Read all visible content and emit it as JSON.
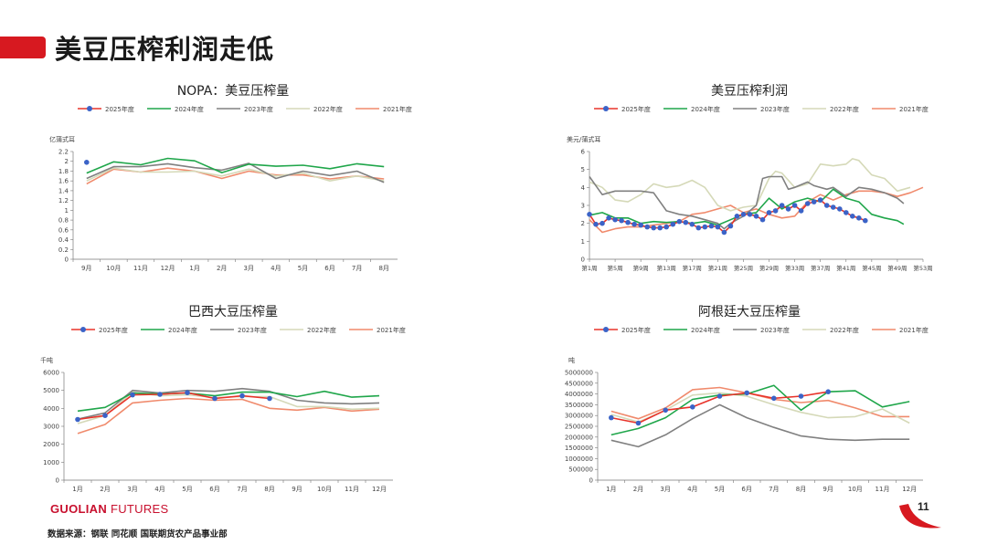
{
  "page": {
    "title": "美豆压榨利润走低",
    "source": "数据来源：钢联  同花顺  国联期货农产品事业部",
    "logo_bold": "GUOLIAN",
    "logo_light": " FUTURES",
    "page_number": "11"
  },
  "colors": {
    "2025年度": "#e8332a",
    "2024年度": "#1fa64a",
    "2023年度": "#808080",
    "2022年度": "#d5d9b8",
    "2021年度": "#f08a6c",
    "marker": "#3b63c7",
    "accent": "#d71920"
  },
  "chart_data": [
    {
      "type": "line",
      "title": "NOPA：美豆压榨量",
      "ylabel": "亿蒲式耳",
      "ylim": [
        0,
        2.2
      ],
      "yticks": [
        0,
        0.2,
        0.4,
        0.6,
        0.8,
        1,
        1.2,
        1.4,
        1.6,
        1.8,
        2,
        2.2
      ],
      "categories": [
        "9月",
        "10月",
        "11月",
        "12月",
        "1月",
        "2月",
        "3月",
        "4月",
        "5月",
        "6月",
        "7月",
        "8月"
      ],
      "series": [
        {
          "name": "2025年度",
          "values": [
            1.98,
            null,
            null,
            null,
            null,
            null,
            null,
            null,
            null,
            null,
            null,
            null
          ]
        },
        {
          "name": "2024年度",
          "values": [
            1.76,
            1.99,
            1.93,
            2.06,
            2.01,
            1.77,
            1.94,
            1.9,
            1.92,
            1.85,
            1.95,
            1.89
          ]
        },
        {
          "name": "2023年度",
          "values": [
            1.65,
            1.89,
            1.89,
            1.95,
            1.87,
            1.82,
            1.96,
            1.65,
            1.8,
            1.71,
            1.8,
            1.57
          ]
        },
        {
          "name": "2022年度",
          "values": [
            1.6,
            1.86,
            1.78,
            1.78,
            1.8,
            1.7,
            1.84,
            1.7,
            1.76,
            1.6,
            1.7,
            1.6
          ]
        },
        {
          "name": "2021年度",
          "values": [
            1.54,
            1.84,
            1.78,
            1.86,
            1.8,
            1.65,
            1.8,
            1.72,
            1.72,
            1.64,
            1.7,
            1.64
          ]
        }
      ]
    },
    {
      "type": "line",
      "title": "美豆压榨利润",
      "ylabel": "美元/蒲式耳",
      "ylim": [
        0,
        6
      ],
      "yticks": [
        0,
        1,
        2,
        3,
        4,
        5,
        6
      ],
      "xticks": [
        "第1周",
        "第5周",
        "第9周",
        "第13周",
        "第17周",
        "第21周",
        "第25周",
        "第29周",
        "第33周",
        "第37周",
        "第41周",
        "第45周",
        "第49周",
        "第53周"
      ],
      "weeks": 53,
      "series": [
        {
          "name": "2025年度",
          "points": [
            [
              1,
              2.5
            ],
            [
              2,
              1.95
            ],
            [
              3,
              2.0
            ],
            [
              4,
              2.3
            ],
            [
              5,
              2.2
            ],
            [
              6,
              2.15
            ],
            [
              7,
              2.05
            ],
            [
              8,
              1.95
            ],
            [
              9,
              1.9
            ],
            [
              10,
              1.8
            ],
            [
              11,
              1.75
            ],
            [
              12,
              1.75
            ],
            [
              13,
              1.8
            ],
            [
              14,
              1.95
            ],
            [
              15,
              2.1
            ],
            [
              16,
              2.05
            ],
            [
              17,
              1.95
            ],
            [
              18,
              1.75
            ],
            [
              19,
              1.8
            ],
            [
              20,
              1.85
            ],
            [
              21,
              1.8
            ],
            [
              22,
              1.5
            ],
            [
              23,
              1.85
            ],
            [
              24,
              2.4
            ],
            [
              25,
              2.5
            ],
            [
              26,
              2.5
            ],
            [
              27,
              2.4
            ],
            [
              28,
              2.2
            ],
            [
              29,
              2.6
            ],
            [
              30,
              2.7
            ],
            [
              31,
              3.0
            ],
            [
              32,
              2.8
            ],
            [
              33,
              3.0
            ],
            [
              34,
              2.7
            ],
            [
              35,
              3.1
            ],
            [
              36,
              3.2
            ],
            [
              37,
              3.3
            ],
            [
              38,
              3.0
            ],
            [
              39,
              2.9
            ],
            [
              40,
              2.8
            ],
            [
              41,
              2.6
            ],
            [
              42,
              2.4
            ],
            [
              43,
              2.3
            ],
            [
              44,
              2.15
            ]
          ]
        },
        {
          "name": "2024年度",
          "points": [
            [
              1,
              2.45
            ],
            [
              3,
              2.6
            ],
            [
              5,
              2.3
            ],
            [
              7,
              2.3
            ],
            [
              9,
              2.0
            ],
            [
              11,
              2.1
            ],
            [
              13,
              2.05
            ],
            [
              15,
              2.1
            ],
            [
              17,
              2.0
            ],
            [
              19,
              2.1
            ],
            [
              21,
              1.9
            ],
            [
              23,
              2.2
            ],
            [
              25,
              2.5
            ],
            [
              27,
              2.6
            ],
            [
              29,
              3.4
            ],
            [
              31,
              2.8
            ],
            [
              33,
              3.2
            ],
            [
              35,
              3.4
            ],
            [
              37,
              3.2
            ],
            [
              39,
              3.9
            ],
            [
              41,
              3.4
            ],
            [
              43,
              3.2
            ],
            [
              45,
              2.5
            ],
            [
              47,
              2.3
            ],
            [
              49,
              2.15
            ],
            [
              50,
              1.95
            ]
          ]
        },
        {
          "name": "2023年度",
          "points": [
            [
              1,
              4.6
            ],
            [
              2,
              4.1
            ],
            [
              3,
              3.6
            ],
            [
              5,
              3.8
            ],
            [
              7,
              3.8
            ],
            [
              9,
              3.8
            ],
            [
              11,
              3.7
            ],
            [
              13,
              2.7
            ],
            [
              15,
              2.5
            ],
            [
              17,
              2.4
            ],
            [
              19,
              2.2
            ],
            [
              21,
              2.0
            ],
            [
              22,
              1.7
            ],
            [
              23,
              2.0
            ],
            [
              24,
              2.2
            ],
            [
              25,
              2.4
            ],
            [
              27,
              3.0
            ],
            [
              28,
              4.5
            ],
            [
              29,
              4.6
            ],
            [
              31,
              4.6
            ],
            [
              32,
              3.9
            ],
            [
              33,
              4.0
            ],
            [
              35,
              4.3
            ],
            [
              36,
              4.1
            ],
            [
              38,
              3.9
            ],
            [
              39,
              4.0
            ],
            [
              41,
              3.5
            ],
            [
              43,
              4.0
            ],
            [
              45,
              3.9
            ],
            [
              47,
              3.7
            ],
            [
              49,
              3.4
            ],
            [
              50,
              3.1
            ]
          ]
        },
        {
          "name": "2022年度",
          "points": [
            [
              1,
              4.3
            ],
            [
              3,
              4.0
            ],
            [
              5,
              3.3
            ],
            [
              7,
              3.2
            ],
            [
              9,
              3.6
            ],
            [
              10,
              3.9
            ],
            [
              11,
              4.2
            ],
            [
              13,
              4.0
            ],
            [
              15,
              4.1
            ],
            [
              17,
              4.4
            ],
            [
              19,
              4.0
            ],
            [
              21,
              3.0
            ],
            [
              23,
              2.7
            ],
            [
              25,
              2.9
            ],
            [
              27,
              3.0
            ],
            [
              29,
              4.5
            ],
            [
              30,
              4.9
            ],
            [
              31,
              4.8
            ],
            [
              33,
              4.0
            ],
            [
              35,
              4.2
            ],
            [
              37,
              5.3
            ],
            [
              39,
              5.2
            ],
            [
              41,
              5.3
            ],
            [
              42,
              5.6
            ],
            [
              43,
              5.5
            ],
            [
              45,
              4.7
            ],
            [
              47,
              4.5
            ],
            [
              49,
              3.8
            ],
            [
              51,
              4.0
            ]
          ]
        },
        {
          "name": "2021年度",
          "points": [
            [
              1,
              2.2
            ],
            [
              3,
              1.5
            ],
            [
              5,
              1.7
            ],
            [
              7,
              1.8
            ],
            [
              9,
              1.8
            ],
            [
              11,
              1.9
            ],
            [
              13,
              2.0
            ],
            [
              15,
              2.1
            ],
            [
              17,
              2.5
            ],
            [
              19,
              2.6
            ],
            [
              21,
              2.8
            ],
            [
              23,
              3.0
            ],
            [
              25,
              2.6
            ],
            [
              27,
              2.8
            ],
            [
              29,
              2.5
            ],
            [
              31,
              2.3
            ],
            [
              33,
              2.4
            ],
            [
              35,
              3.2
            ],
            [
              37,
              3.6
            ],
            [
              39,
              3.3
            ],
            [
              41,
              3.6
            ],
            [
              43,
              3.8
            ],
            [
              45,
              3.8
            ],
            [
              47,
              3.7
            ],
            [
              49,
              3.5
            ],
            [
              51,
              3.7
            ],
            [
              53,
              4.0
            ]
          ]
        }
      ]
    },
    {
      "type": "line",
      "title": "巴西大豆压榨量",
      "ylabel": "千吨",
      "ylim": [
        0,
        6000
      ],
      "yticks": [
        0,
        1000,
        2000,
        3000,
        4000,
        5000,
        6000
      ],
      "categories": [
        "1月",
        "2月",
        "3月",
        "4月",
        "5月",
        "6月",
        "7月",
        "8月",
        "9月",
        "10月",
        "11月",
        "12月"
      ],
      "series": [
        {
          "name": "2025年度",
          "values": [
            3380,
            3600,
            4750,
            4780,
            4870,
            4550,
            4700,
            4550,
            null,
            null,
            null,
            null
          ]
        },
        {
          "name": "2024年度",
          "values": [
            3850,
            4050,
            4850,
            4800,
            4850,
            4700,
            4900,
            4900,
            4650,
            4950,
            4620,
            4700
          ]
        },
        {
          "name": "2023年度",
          "values": [
            3400,
            3750,
            5000,
            4850,
            5000,
            4950,
            5100,
            4950,
            4450,
            4300,
            4250,
            4300
          ]
        },
        {
          "name": "2022年度",
          "values": [
            3150,
            3600,
            4900,
            4700,
            4750,
            4600,
            4650,
            4650,
            4100,
            4100,
            3950,
            4000
          ]
        },
        {
          "name": "2021年度",
          "values": [
            2600,
            3100,
            4300,
            4450,
            4550,
            4450,
            4500,
            4000,
            3900,
            4050,
            3850,
            3950
          ]
        }
      ]
    },
    {
      "type": "line",
      "title": "阿根廷大豆压榨量",
      "ylabel": "吨",
      "ylim": [
        0,
        5000000
      ],
      "yticks": [
        0,
        500000,
        1000000,
        1500000,
        2000000,
        2500000,
        3000000,
        3500000,
        4000000,
        4500000,
        5000000
      ],
      "categories": [
        "1月",
        "2月",
        "3月",
        "4月",
        "5月",
        "6月",
        "7月",
        "8月",
        "9月",
        "10月",
        "11月",
        "12月"
      ],
      "series": [
        {
          "name": "2025年度",
          "values": [
            2900000,
            2650000,
            3250000,
            3400000,
            3900000,
            4050000,
            3800000,
            3900000,
            4100000,
            null,
            null,
            null
          ]
        },
        {
          "name": "2024年度",
          "values": [
            2100000,
            2400000,
            2900000,
            3750000,
            3950000,
            4000000,
            4400000,
            3250000,
            4100000,
            4150000,
            3400000,
            3650000
          ]
        },
        {
          "name": "2023年度",
          "values": [
            1850000,
            1550000,
            2100000,
            2850000,
            3500000,
            2900000,
            2450000,
            2050000,
            1900000,
            1850000,
            1900000,
            1900000
          ]
        },
        {
          "name": "2022年度",
          "values": [
            3050000,
            2700000,
            3250000,
            3950000,
            4050000,
            3900000,
            3500000,
            3150000,
            2900000,
            2950000,
            3300000,
            2650000
          ]
        },
        {
          "name": "2021年度",
          "values": [
            3200000,
            2850000,
            3350000,
            4200000,
            4300000,
            4050000,
            3750000,
            3600000,
            3700000,
            3350000,
            2950000,
            2950000
          ]
        }
      ]
    }
  ]
}
